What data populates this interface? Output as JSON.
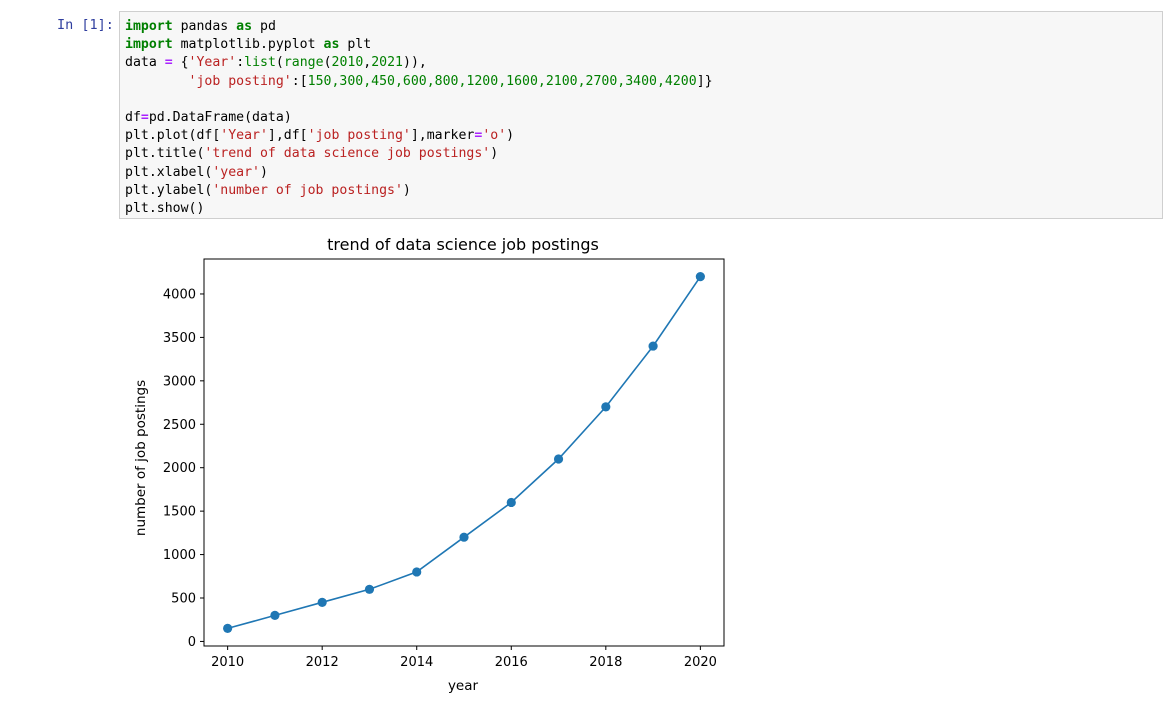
{
  "cell": {
    "prompt": "In [1]:",
    "code": {
      "l1": {
        "kw": "import",
        "mod": " pandas ",
        "kw2": "as",
        "alias": " pd"
      },
      "l2": {
        "kw": "import",
        "mod": " matplotlib.pyplot ",
        "kw2": "as",
        "alias": " plt"
      },
      "l3": {
        "a": "data ",
        "op": "=",
        "b": " {",
        "s1": "'Year'",
        "c": ":",
        "f1": "list",
        "d": "(",
        "f2": "range",
        "e": "(",
        "n1": "2010",
        "f": ",",
        "n2": "2021",
        "g": ")),"
      },
      "l4": {
        "indent": "        ",
        "s1": "'job posting'",
        "a": ":[",
        "n": "150,300,450,600,800,1200,1600,2100,2700,3400,4200",
        "b": "]}"
      },
      "l6": {
        "a": "df",
        "op": "=",
        "b": "pd.DataFrame(data)"
      },
      "l7": {
        "a": "plt.plot(df[",
        "s1": "'Year'",
        "b": "],df[",
        "s2": "'job posting'",
        "c": "],marker",
        "op": "=",
        "s3": "'o'",
        "d": ")"
      },
      "l8": {
        "a": "plt.title(",
        "s": "'trend of data science job postings'",
        "b": ")"
      },
      "l9": {
        "a": "plt.xlabel(",
        "s": "'year'",
        "b": ")"
      },
      "l10": {
        "a": "plt.ylabel(",
        "s": "'number of job postings'",
        "b": ")"
      },
      "l11": {
        "a": "plt.show()"
      }
    }
  },
  "colors": {
    "line": "#1f77b4",
    "prompt": "#303f9f",
    "cell_bg": "#f7f7f7"
  },
  "chart_data": {
    "type": "line",
    "title": "trend of data science job postings",
    "xlabel": "year",
    "ylabel": "number of job postings",
    "x": [
      2010,
      2011,
      2012,
      2013,
      2014,
      2015,
      2016,
      2017,
      2018,
      2019,
      2020
    ],
    "series": [
      {
        "values": [
          150,
          300,
          450,
          600,
          800,
          1200,
          1600,
          2100,
          2700,
          3400,
          4200
        ],
        "marker": "o"
      }
    ],
    "xlim": [
      2009.5,
      2020.5
    ],
    "ylim": [
      -52.5,
      4402.5
    ],
    "xticks": [
      2010,
      2012,
      2014,
      2016,
      2018,
      2020
    ],
    "yticks": [
      0,
      500,
      1000,
      1500,
      2000,
      2500,
      3000,
      3500,
      4000
    ],
    "grid": false
  }
}
